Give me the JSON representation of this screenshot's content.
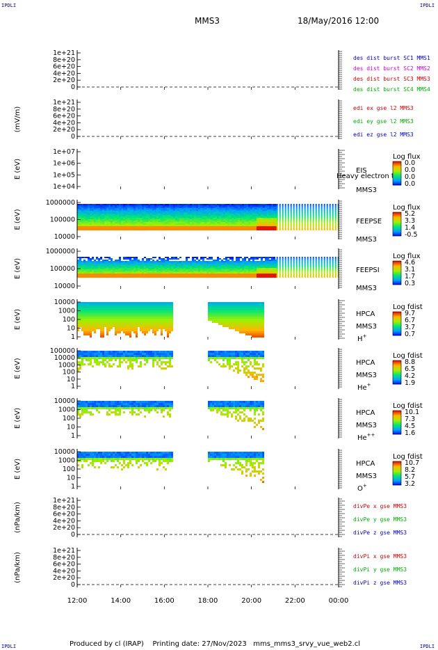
{
  "corners": {
    "tl": "IPDLI",
    "tr": "IPDLI",
    "bl": "IPDLI",
    "br": "IPDLI"
  },
  "header": {
    "mission": "MMS3",
    "date": "18/May/2016 12:00"
  },
  "footer": {
    "produced": "Produced by cl (IRAP)",
    "printing": "Printing date: 27/Nov/2023",
    "file": "mms_mms3_srvy_vue_web2.cl"
  },
  "chart_data": [
    {
      "type": "line",
      "ylabel": "",
      "yticks": [
        "1e+21",
        "8e+20",
        "6e+20",
        "4e+20",
        "2e+20",
        "0"
      ],
      "dashed_zero": true,
      "legend": [
        {
          "text": "des dist burst SC1 MMS1",
          "color": "#0000cc"
        },
        {
          "text": "des dist burst SC2 MMS2",
          "color": "#cc00cc"
        },
        {
          "text": "des dist burst SC3 MMS3",
          "color": "#cc0000"
        },
        {
          "text": "des dist burst SC4 MMS4",
          "color": "#00aa00"
        }
      ],
      "series": []
    },
    {
      "type": "line",
      "ylabel": "(mV/m)",
      "yticks": [
        "1e+21",
        "8e+20",
        "6e+20",
        "4e+20",
        "2e+20",
        "0"
      ],
      "dashed_zero": true,
      "legend": [
        {
          "text": "edi ex gse l2 MMS3",
          "color": "#cc0000"
        },
        {
          "text": "edi ey gse l2 MMS3",
          "color": "#00aa00"
        },
        {
          "text": "edi ez gse l2 MMS3",
          "color": "#0000cc"
        }
      ],
      "series": []
    },
    {
      "type": "heatmap",
      "ylabel": "E (eV)",
      "yticks": [
        "1e+07",
        "1e+06",
        "1e+05",
        "1e+04"
      ],
      "instrument": [
        "EIS",
        "MMS3"
      ],
      "overlay": "Heavy electron to",
      "colorbar": {
        "title": "Log flux",
        "ticks": [
          "0.0",
          "0.0",
          "0.0",
          "0.0"
        ]
      },
      "data": "empty"
    },
    {
      "type": "heatmap",
      "ylabel": "E (eV)",
      "yticks": [
        "1000000",
        "100000",
        "10000"
      ],
      "instrument": [
        "FEEPSE",
        "MMS3"
      ],
      "colorbar": {
        "title": "Log flux",
        "ticks": [
          "5.2",
          "3.3",
          "1.4",
          "-0.5"
        ]
      },
      "data": "continuous 12:00-21:10, striped 21:10-24:00"
    },
    {
      "type": "heatmap",
      "ylabel": "E (eV)",
      "yticks": [
        "1000000",
        "100000",
        "10000"
      ],
      "instrument": [
        "FEEPSI",
        "MMS3"
      ],
      "colorbar": {
        "title": "Log flux",
        "ticks": [
          "4.6",
          "3.1",
          "1.7",
          "0.3"
        ]
      },
      "data": "continuous 12:00-21:10, striped 21:10-24:00"
    },
    {
      "type": "heatmap",
      "ylabel": "E (eV)",
      "yticks": [
        "10000",
        "1000",
        "100",
        "10",
        "1"
      ],
      "instrument": [
        "HPCA",
        "MMS3",
        "H+"
      ],
      "colorbar": {
        "title": "Log fdist",
        "ticks": [
          "9.7",
          "6.7",
          "3.7",
          "0.7"
        ]
      },
      "data": "12:00-16:25, 18:00-20:32"
    },
    {
      "type": "heatmap",
      "ylabel": "E (eV)",
      "yticks": [
        "100000",
        "10000",
        "1000",
        "100",
        "10",
        "1"
      ],
      "instrument": [
        "HPCA",
        "MMS3",
        "He+"
      ],
      "colorbar": {
        "title": "Log fdist",
        "ticks": [
          "8.8",
          "6.5",
          "4.2",
          "1.9"
        ]
      },
      "data": "12:00-16:25, 18:00-20:32"
    },
    {
      "type": "heatmap",
      "ylabel": "E (eV)",
      "yticks": [
        "10000",
        "1000",
        "100",
        "10",
        "1"
      ],
      "instrument": [
        "HPCA",
        "MMS3",
        "He++"
      ],
      "colorbar": {
        "title": "Log fdist",
        "ticks": [
          "10.1",
          "7.3",
          "4.5",
          "1.6"
        ]
      },
      "data": "12:00-16:25, 18:00-20:32"
    },
    {
      "type": "heatmap",
      "ylabel": "E (eV)",
      "yticks": [
        "10000",
        "1000",
        "100",
        "10",
        "1"
      ],
      "instrument": [
        "HPCA",
        "MMS3",
        "O+"
      ],
      "colorbar": {
        "title": "Log fdist",
        "ticks": [
          "10.7",
          "8.2",
          "5.7",
          "3.2"
        ]
      },
      "data": "12:00-16:25, 18:00-20:32"
    },
    {
      "type": "line",
      "ylabel": "(nPa/km)",
      "yticks": [
        "1e+21",
        "8e+20",
        "6e+20",
        "4e+20",
        "2e+20",
        "0"
      ],
      "dashed_zero": true,
      "legend": [
        {
          "text": "divPe x gse MMS3",
          "color": "#cc0000"
        },
        {
          "text": "divPe y gse MMS3",
          "color": "#00aa00"
        },
        {
          "text": "divPe z gse MMS3",
          "color": "#0000cc"
        }
      ],
      "series": []
    },
    {
      "type": "line",
      "ylabel": "(nPa/km)",
      "yticks": [
        "1e+21",
        "8e+20",
        "6e+20",
        "4e+20",
        "2e+20",
        "0"
      ],
      "dashed_zero": true,
      "legend": [
        {
          "text": "divPi x gse MMS3",
          "color": "#cc0000"
        },
        {
          "text": "divPi y gse MMS3",
          "color": "#00aa00"
        },
        {
          "text": "divPi z gse MMS3",
          "color": "#0000cc"
        }
      ],
      "series": []
    }
  ],
  "xaxis": {
    "ticks": [
      "12:00",
      "14:00",
      "16:00",
      "18:00",
      "20:00",
      "22:00",
      "00:00"
    ]
  }
}
